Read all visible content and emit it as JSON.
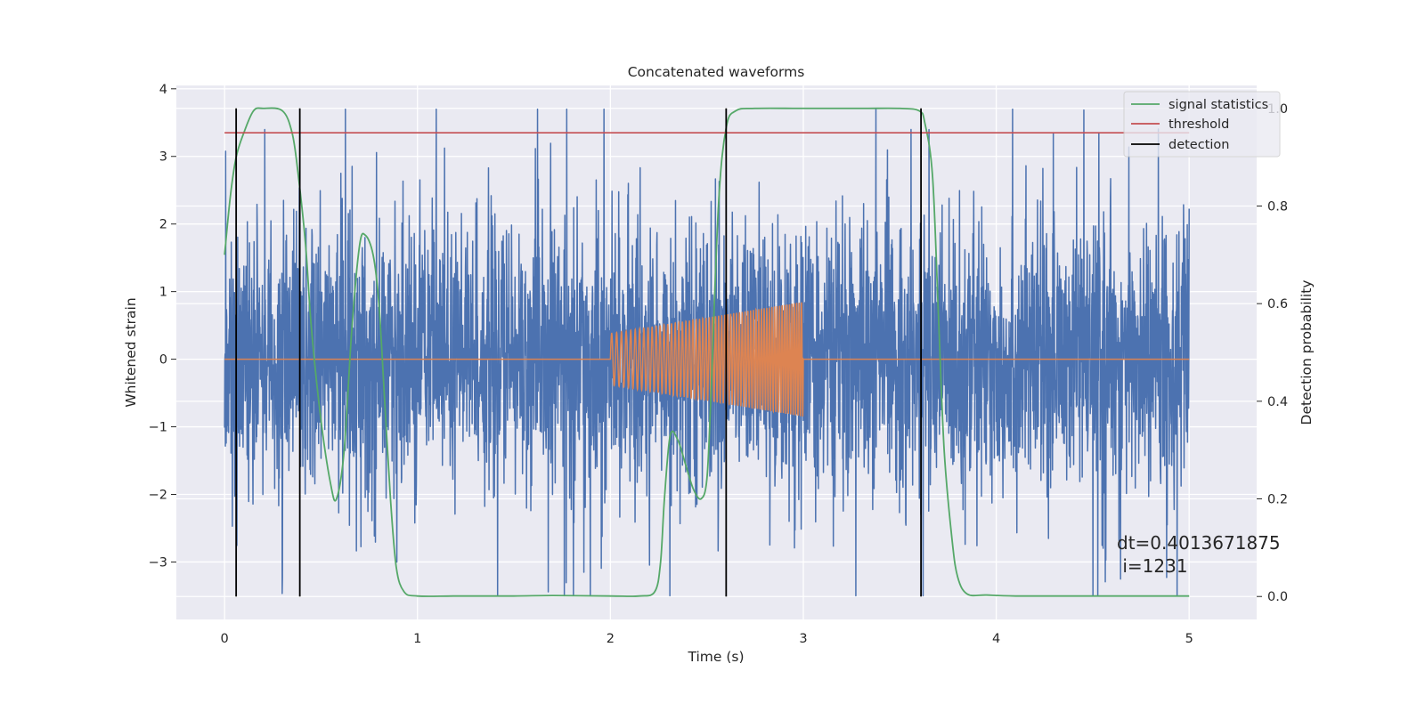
{
  "chart_data": {
    "type": "line",
    "title": "Concatenated waveforms",
    "xlabel": "Time (s)",
    "ylabel": "Whitened strain",
    "y2label": "Detection probability",
    "xlim": [
      -0.25,
      5.35
    ],
    "ylim": [
      -3.85,
      4.05
    ],
    "y2lim": [
      -0.047,
      1.047
    ],
    "x_ticks": [
      "0",
      "1",
      "2",
      "3",
      "4",
      "5"
    ],
    "y_ticks": [
      "−3",
      "−2",
      "−1",
      "0",
      "1",
      "2",
      "3",
      "4"
    ],
    "y2_ticks": [
      "0.0",
      "0.2",
      "0.4",
      "0.6",
      "0.8",
      "1.0"
    ],
    "grid": true,
    "legend_position": "top-right",
    "legend": [
      "signal statistics",
      "threshold",
      "detection"
    ],
    "annotation": [
      "dt=0.4013671875",
      " i=1231"
    ],
    "series": [
      {
        "role": "noise strain",
        "axis": "left",
        "color": "#4c72b0",
        "x_range": [
          0,
          5
        ],
        "envelope": [
          -3.5,
          3.7
        ]
      },
      {
        "role": "injected chirp",
        "axis": "left",
        "color": "#dd8452",
        "x_range": [
          0,
          5
        ],
        "chirp_x_range": [
          2,
          3
        ],
        "chirp_amplitude": [
          0.38,
          0.85
        ]
      },
      {
        "name": "signal statistics",
        "axis": "right",
        "color": "#55a868",
        "x": [
          0,
          0.03,
          0.06,
          0.1,
          0.15,
          0.2,
          0.3,
          0.35,
          0.38,
          0.42,
          0.45,
          0.5,
          0.55,
          0.58,
          0.62,
          0.66,
          0.7,
          0.73,
          0.77,
          0.8,
          0.83,
          0.86,
          0.89,
          0.93,
          1.0,
          1.2,
          1.5,
          1.7,
          2.0,
          2.15,
          2.23,
          2.26,
          2.28,
          2.31,
          2.35,
          2.39,
          2.43,
          2.47,
          2.5,
          2.52,
          2.56,
          2.6,
          2.65,
          2.75,
          3.0,
          3.3,
          3.5,
          3.6,
          3.63,
          3.67,
          3.7,
          3.73,
          3.77,
          3.8,
          3.85,
          3.95,
          4.1,
          4.5,
          5.0
        ],
        "y": [
          0.7,
          0.82,
          0.9,
          0.95,
          0.995,
          1.0,
          0.995,
          0.95,
          0.87,
          0.72,
          0.55,
          0.36,
          0.23,
          0.2,
          0.3,
          0.55,
          0.72,
          0.74,
          0.7,
          0.6,
          0.4,
          0.2,
          0.06,
          0.01,
          0.001,
          0.001,
          0.001,
          0.002,
          0.001,
          0.001,
          0.01,
          0.07,
          0.2,
          0.33,
          0.32,
          0.27,
          0.22,
          0.2,
          0.24,
          0.4,
          0.8,
          0.96,
          0.995,
          1.0,
          1.0,
          1.0,
          1.0,
          0.995,
          0.97,
          0.86,
          0.58,
          0.3,
          0.12,
          0.04,
          0.005,
          0.003,
          0.001,
          0.001,
          0.001
        ]
      },
      {
        "name": "threshold",
        "axis": "right",
        "color": "#c44e52",
        "x": [
          0,
          5
        ],
        "y": [
          0.95,
          0.95
        ]
      },
      {
        "name": "detection",
        "axis": "right",
        "color": "#000000",
        "x": [
          0.06,
          0.39,
          2.6,
          3.61
        ],
        "ymin": 0.0,
        "ymax": 1.0
      }
    ]
  }
}
